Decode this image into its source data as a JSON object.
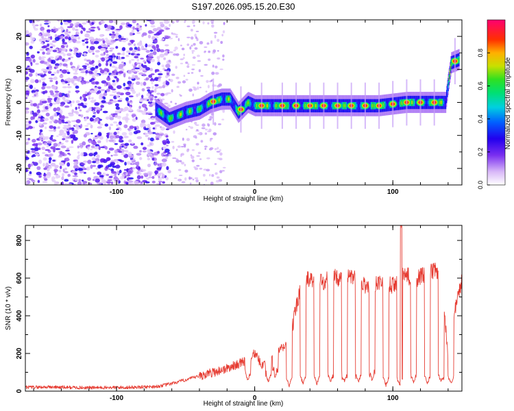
{
  "chart_data": [
    {
      "type": "heatmap",
      "title": "S197.2026.095.15.20.E30",
      "xlabel": "Height of straight line (km)",
      "ylabel": "Frequency (Hz)",
      "xlim": [
        -166,
        150
      ],
      "ylim": [
        -25,
        25
      ],
      "xticks": [
        -100,
        0,
        100
      ],
      "yticks": [
        -20,
        -10,
        0,
        10,
        20
      ],
      "colorbar": {
        "label": "Normalized spectral amplitude",
        "range": [
          0,
          1
        ],
        "ticks": [
          0.0,
          0.2,
          0.4,
          0.6,
          0.8
        ],
        "tick_labels": [
          "0.0",
          "0.2",
          "0.4",
          "0.6",
          "0.8"
        ]
      },
      "ridge": {
        "description_points_x": [
          -72,
          -62,
          -50,
          -40,
          -32,
          -24,
          -18,
          -12,
          -5,
          0,
          30,
          60,
          90,
          110,
          130,
          138,
          142,
          148
        ],
        "frequency": [
          -2,
          -5,
          -3,
          -2,
          0,
          1,
          1,
          -3,
          0,
          -1,
          -1,
          -1,
          -1,
          0,
          0,
          0,
          12,
          13
        ]
      },
      "peaks_x": [
        -30,
        -10,
        5,
        20,
        30,
        40,
        50,
        60,
        70,
        80,
        90,
        100,
        110,
        120,
        130,
        145
      ]
    },
    {
      "type": "line",
      "xlabel": "Height of straight line (km)",
      "ylabel": "SNR (10 * v/v)",
      "xlim": [
        -166,
        150
      ],
      "ylim": [
        0,
        880
      ],
      "xticks": [
        -100,
        0,
        100
      ],
      "yticks": [
        0,
        200,
        400,
        600,
        800
      ],
      "series": [
        {
          "name": "SNR",
          "color": "#e63c32",
          "x": [
            -166,
            -150,
            -120,
            -90,
            -70,
            -60,
            -50,
            -40,
            -30,
            -20,
            -10,
            -5,
            0,
            5,
            10,
            15,
            20,
            25,
            30,
            35,
            40,
            45,
            50,
            55,
            60,
            65,
            70,
            75,
            80,
            85,
            90,
            95,
            100,
            105,
            110,
            115,
            120,
            125,
            130,
            135,
            140,
            145,
            150
          ],
          "values": [
            20,
            22,
            18,
            20,
            25,
            40,
            60,
            80,
            100,
            120,
            150,
            170,
            200,
            140,
            170,
            200,
            230,
            250,
            450,
            600,
            590,
            600,
            580,
            610,
            600,
            590,
            610,
            580,
            560,
            560,
            580,
            570,
            560,
            600,
            620,
            580,
            610,
            620,
            640,
            620,
            180,
            420,
            600
          ]
        }
      ],
      "dips_x": [
        -5,
        10,
        15,
        25,
        35,
        45,
        55,
        65,
        75,
        85,
        95,
        105,
        115,
        125,
        135,
        142
      ],
      "dip_values": [
        60,
        50,
        80,
        30,
        40,
        40,
        50,
        50,
        50,
        60,
        30,
        30,
        50,
        40,
        50,
        40
      ],
      "spike": {
        "x": 106,
        "value": 880
      }
    }
  ]
}
